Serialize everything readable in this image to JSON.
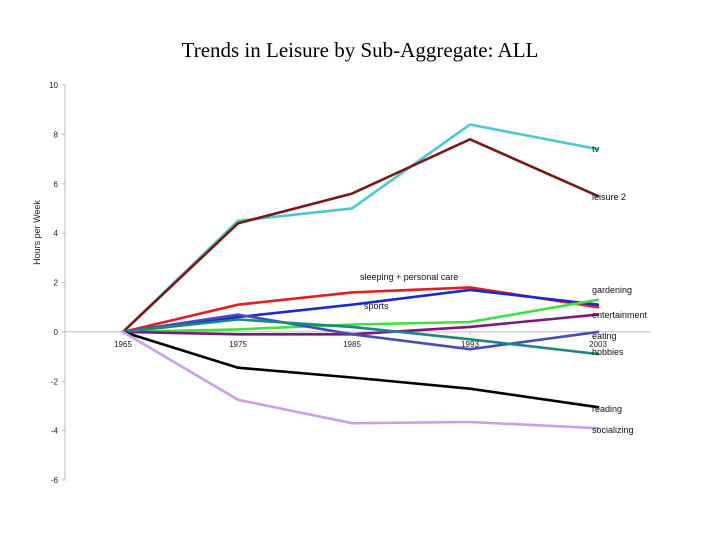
{
  "chart_data": {
    "type": "line",
    "title": "Trends in Leisure by Sub-Aggregate:  ALL",
    "xlabel": "",
    "ylabel": "Hours per Week",
    "categories": [
      "1965",
      "1975",
      "1985",
      "1993",
      "2003"
    ],
    "ylim": [
      -6,
      10
    ],
    "yticks": [
      -6,
      -4,
      -2,
      0,
      2,
      4,
      6,
      8,
      10
    ],
    "grid": false,
    "series": [
      {
        "name": "tv",
        "color": "#4cc9cf",
        "values": [
          0,
          4.5,
          5.0,
          8.4,
          7.4
        ]
      },
      {
        "name": "leisure 2",
        "color": "#7a1818",
        "values": [
          0,
          4.4,
          5.6,
          7.8,
          5.5
        ]
      },
      {
        "name": "sleeping + personal care",
        "color": "#e02020",
        "values": [
          0,
          1.1,
          1.6,
          1.8,
          1.0
        ]
      },
      {
        "name": "sports",
        "color": "#1a2ad0",
        "values": [
          0,
          0.6,
          1.1,
          1.7,
          1.1
        ]
      },
      {
        "name": "gardening",
        "color": "#40e040",
        "values": [
          0,
          0.1,
          0.3,
          0.4,
          1.3
        ]
      },
      {
        "name": "entertainment",
        "color": "#7a1a7a",
        "values": [
          0,
          -0.1,
          -0.1,
          0.2,
          0.7
        ]
      },
      {
        "name": "eating",
        "color": "#4a4ab8",
        "values": [
          0,
          0.7,
          -0.1,
          -0.7,
          0.0
        ]
      },
      {
        "name": "hobbies",
        "color": "#1a8a80",
        "values": [
          0,
          0.5,
          0.2,
          -0.3,
          -0.9
        ]
      },
      {
        "name": "reading",
        "color": "#000000",
        "values": [
          0,
          -1.45,
          -1.85,
          -2.3,
          -3.05
        ]
      },
      {
        "name": "socializing",
        "color": "#c8a0e8",
        "values": [
          0,
          -2.75,
          -3.7,
          -3.65,
          -3.9
        ]
      }
    ]
  }
}
